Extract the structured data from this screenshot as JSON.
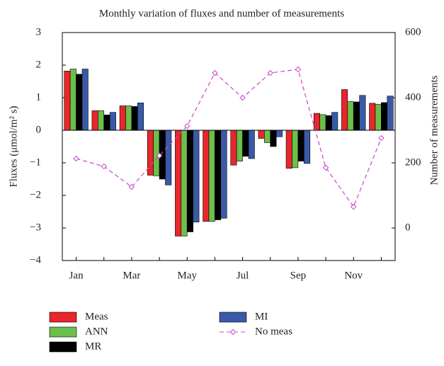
{
  "chart_data": {
    "type": "bar",
    "title": "Monthly variation of fluxes and number of measurements",
    "y_label": "Fluxes (μmol/m² s)",
    "y2_label": "Number of measurements",
    "categories": [
      "Jan",
      null,
      "Mar",
      null,
      "May",
      null,
      "Jul",
      null,
      "Sep",
      null,
      "Nov",
      null
    ],
    "ylim": [
      -4,
      3
    ],
    "yticks": [
      {
        "value": -4,
        "label": "−4"
      },
      {
        "value": -3,
        "label": "−3"
      },
      {
        "value": -2,
        "label": "−2"
      },
      {
        "value": -1,
        "label": "−1"
      },
      0,
      1,
      2,
      3
    ],
    "y2lim": [
      -100,
      600
    ],
    "y2ticks": [
      0,
      200,
      400,
      600
    ],
    "series": [
      {
        "name": "Meas",
        "color": "#e8262b",
        "values": [
          1.82,
          0.6,
          0.75,
          -1.38,
          -3.25,
          -2.8,
          -1.07,
          -0.25,
          -1.17,
          0.52,
          1.25,
          0.83
        ]
      },
      {
        "name": "ANN",
        "color": "#6cbf4a",
        "values": [
          1.88,
          0.6,
          0.75,
          -1.4,
          -3.25,
          -2.8,
          -0.95,
          -0.38,
          -1.15,
          0.48,
          0.88,
          0.8
        ]
      },
      {
        "name": "MR",
        "color": "#000000",
        "values": [
          1.72,
          0.47,
          0.73,
          -1.5,
          -3.12,
          -2.75,
          -0.8,
          -0.5,
          -0.95,
          0.45,
          0.87,
          0.85
        ]
      },
      {
        "name": "MI",
        "color": "#3a5aa8",
        "values": [
          1.88,
          0.55,
          0.84,
          -1.68,
          -2.82,
          -2.7,
          -0.87,
          -0.2,
          -1.02,
          0.55,
          1.07,
          1.05
        ]
      },
      {
        "name": "No meas",
        "type": "line",
        "axis": "y2",
        "color": "#cc44cc",
        "values": [
          213,
          189,
          126,
          222,
          313,
          476,
          400,
          476,
          487,
          185,
          65,
          276
        ]
      }
    ]
  }
}
